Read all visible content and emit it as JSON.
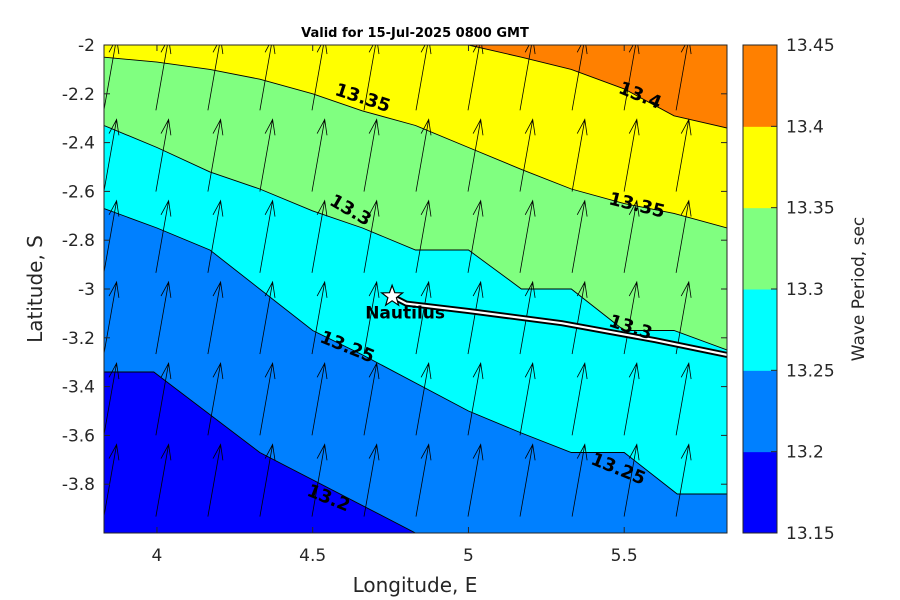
{
  "title": "Valid for 15-Jul-2025 0800 GMT",
  "colors": {
    "levels": [
      "#0000ff",
      "#0080ff",
      "#00ffff",
      "#80ff80",
      "#ffff00",
      "#ff8000"
    ],
    "contour": "#000000",
    "track_outer": "#000000",
    "track_inner": "#ffffff"
  },
  "chart_data": {
    "type": "contour-map",
    "title": "Valid for 15-Jul-2025 0800 GMT",
    "xlabel": "Longitude, E",
    "ylabel": "Latitude, S",
    "xlim": [
      3.83,
      5.83
    ],
    "ylim": [
      -4.0,
      -2.0
    ],
    "x_ticks": [
      "4",
      "4.5",
      "5",
      "5.5"
    ],
    "x_tick_values": [
      4,
      4.5,
      5,
      5.5
    ],
    "y_ticks": [
      "-2",
      "-2.2",
      "-2.4",
      "-2.6",
      "-2.8",
      "-3",
      "-3.2",
      "-3.4",
      "-3.6",
      "-3.8"
    ],
    "y_tick_values": [
      -2,
      -2.2,
      -2.4,
      -2.6,
      -2.8,
      -3,
      -3.2,
      -3.4,
      -3.6,
      -3.8
    ],
    "colorbar": {
      "label": "Wave Period, sec",
      "ticks": [
        "13.15",
        "13.2",
        "13.25",
        "13.3",
        "13.35",
        "13.4",
        "13.45"
      ],
      "range": [
        13.15,
        13.45
      ]
    },
    "levels": [
      13.15,
      13.2,
      13.25,
      13.3,
      13.35,
      13.4,
      13.45
    ],
    "contours": [
      {
        "level": 13.2,
        "points": [
          [
            3.83,
            -3.34
          ],
          [
            3.99,
            -3.34
          ],
          [
            4.33,
            -3.67
          ],
          [
            4.83,
            -4.0
          ]
        ]
      },
      {
        "level": 13.25,
        "points": [
          [
            3.83,
            -2.67
          ],
          [
            4.0,
            -2.75
          ],
          [
            4.17,
            -2.84
          ],
          [
            4.5,
            -3.17
          ],
          [
            4.66,
            -3.27
          ],
          [
            5.0,
            -3.5
          ],
          [
            5.17,
            -3.59
          ],
          [
            5.33,
            -3.67
          ],
          [
            5.5,
            -3.67
          ],
          [
            5.67,
            -3.84
          ],
          [
            5.83,
            -3.84
          ]
        ]
      },
      {
        "level": 13.3,
        "points": [
          [
            3.83,
            -2.33
          ],
          [
            4.0,
            -2.42
          ],
          [
            4.17,
            -2.52
          ],
          [
            4.33,
            -2.59
          ],
          [
            4.5,
            -2.68
          ],
          [
            4.66,
            -2.75
          ],
          [
            4.83,
            -2.84
          ],
          [
            5.0,
            -2.84
          ],
          [
            5.17,
            -3.0
          ],
          [
            5.33,
            -3.0
          ],
          [
            5.5,
            -3.17
          ],
          [
            5.66,
            -3.17
          ],
          [
            5.83,
            -3.25
          ]
        ]
      },
      {
        "level": 13.35,
        "points": [
          [
            3.83,
            -2.05
          ],
          [
            4.0,
            -2.07
          ],
          [
            4.17,
            -2.1
          ],
          [
            4.33,
            -2.14
          ],
          [
            4.5,
            -2.2
          ],
          [
            4.66,
            -2.27
          ],
          [
            4.83,
            -2.33
          ],
          [
            5.0,
            -2.42
          ],
          [
            5.17,
            -2.51
          ],
          [
            5.33,
            -2.59
          ],
          [
            5.5,
            -2.65
          ],
          [
            5.66,
            -2.69
          ],
          [
            5.83,
            -2.75
          ]
        ]
      },
      {
        "level": 13.4,
        "points": [
          [
            5.0,
            -2.0
          ],
          [
            5.17,
            -2.05
          ],
          [
            5.33,
            -2.1
          ],
          [
            5.5,
            -2.18
          ],
          [
            5.66,
            -2.29
          ],
          [
            5.83,
            -2.34
          ]
        ]
      }
    ],
    "contour_labels": [
      {
        "text": "13.35",
        "lon": 4.66,
        "lat": -2.22,
        "angle": 18
      },
      {
        "text": "13.4",
        "lon": 5.55,
        "lat": -2.21,
        "angle": 22
      },
      {
        "text": "13.3",
        "lon": 4.62,
        "lat": -2.68,
        "angle": 30
      },
      {
        "text": "13.35",
        "lon": 5.54,
        "lat": -2.66,
        "angle": 14
      },
      {
        "text": "13.3",
        "lon": 5.52,
        "lat": -3.16,
        "angle": 18
      },
      {
        "text": "13.25",
        "lon": 4.61,
        "lat": -3.24,
        "angle": 22
      },
      {
        "text": "13.25",
        "lon": 5.48,
        "lat": -3.74,
        "angle": 22
      },
      {
        "text": "13.2",
        "lon": 4.55,
        "lat": -3.86,
        "angle": 22
      }
    ],
    "station": {
      "label": "Nautilus",
      "lon": 4.755,
      "lat": -3.03
    },
    "track": [
      [
        4.755,
        -3.03
      ],
      [
        4.8,
        -3.06
      ],
      [
        5.0,
        -3.09
      ],
      [
        5.3,
        -3.14
      ],
      [
        5.6,
        -3.21
      ],
      [
        5.83,
        -3.27
      ]
    ],
    "wind_arrows": {
      "lon_start": 3.85,
      "lon_step": 0.167,
      "lat_start": -2.12,
      "lat_step": -0.333,
      "cols": 12,
      "rows": 6,
      "direction_deg": 10,
      "length_deg": 0.3
    }
  }
}
